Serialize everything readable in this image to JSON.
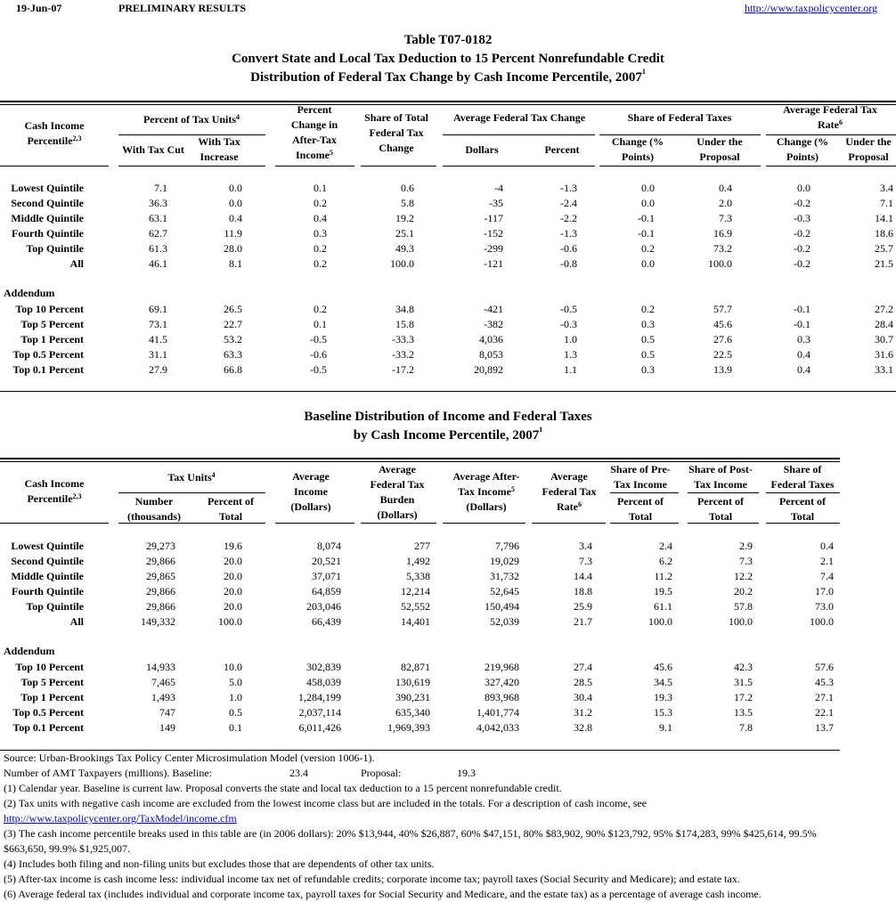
{
  "top": {
    "date": "19-Jun-07",
    "status": "PRELIMINARY RESULTS",
    "url": "http://www.taxpolicycenter.org"
  },
  "titles": {
    "table_id": "Table T07-0182",
    "line2": "Convert State and Local Tax Deduction to 15 Percent Nonrefundable Credit",
    "line3": "Distribution of Federal Tax Change by Cash Income Percentile, 2007",
    "line3_sup": "1"
  },
  "table1": {
    "headers": [
      {
        "lines": [
          "Cash Income",
          "Percentile"
        ],
        "sup": "2,3"
      },
      {
        "lines": [
          "Percent of Tax Units"
        ],
        "sup": "4"
      },
      {
        "lines": [
          "With Tax Cut"
        ]
      },
      {
        "lines": [
          "With Tax",
          "Increase"
        ]
      },
      {
        "lines": [
          "Percent",
          "Change in",
          "After-Tax",
          "Income"
        ],
        "sup": "5"
      },
      {
        "lines": [
          "Share of Total",
          "Federal Tax",
          "Change"
        ]
      },
      {
        "lines": [
          "Average Federal Tax Change"
        ]
      },
      {
        "lines": [
          "Dollars"
        ]
      },
      {
        "lines": [
          "Percent"
        ]
      },
      {
        "lines": [
          "Share of Federal Taxes"
        ]
      },
      {
        "lines": [
          "Change (%",
          "Points)"
        ]
      },
      {
        "lines": [
          "Under the",
          "Proposal"
        ]
      },
      {
        "lines": [
          "Average Federal Tax",
          "Rate"
        ],
        "sup": "6"
      },
      {
        "lines": [
          "Change (%",
          "Points)"
        ]
      },
      {
        "lines": [
          "Under the",
          "Proposal"
        ]
      }
    ],
    "addendum_label": "Addendum",
    "rows": [
      [
        "Lowest Quintile",
        "7.1",
        "0.0",
        "0.1",
        "0.6",
        "-4",
        "-1.3",
        "0.0",
        "0.4",
        "0.0",
        "3.4"
      ],
      [
        "Second Quintile",
        "36.3",
        "0.0",
        "0.2",
        "5.8",
        "-35",
        "-2.4",
        "0.0",
        "2.0",
        "-0.2",
        "7.1"
      ],
      [
        "Middle Quintile",
        "63.1",
        "0.4",
        "0.4",
        "19.2",
        "-117",
        "-2.2",
        "-0.1",
        "7.3",
        "-0.3",
        "14.1"
      ],
      [
        "Fourth Quintile",
        "62.7",
        "11.9",
        "0.3",
        "25.1",
        "-152",
        "-1.3",
        "-0.1",
        "16.9",
        "-0.2",
        "18.6"
      ],
      [
        "Top Quintile",
        "61.3",
        "28.0",
        "0.2",
        "49.3",
        "-299",
        "-0.6",
        "0.2",
        "73.2",
        "-0.2",
        "25.7"
      ],
      [
        "All",
        "46.1",
        "8.1",
        "0.2",
        "100.0",
        "-121",
        "-0.8",
        "0.0",
        "100.0",
        "-0.2",
        "21.5"
      ]
    ],
    "addendum_rows": [
      [
        "Top 10 Percent",
        "69.1",
        "26.5",
        "0.2",
        "34.8",
        "-421",
        "-0.5",
        "0.2",
        "57.7",
        "-0.1",
        "27.2"
      ],
      [
        "Top 5 Percent",
        "73.1",
        "22.7",
        "0.1",
        "15.8",
        "-382",
        "-0.3",
        "0.3",
        "45.6",
        "-0.1",
        "28.4"
      ],
      [
        "Top 1 Percent",
        "41.5",
        "53.2",
        "-0.5",
        "-33.3",
        "4,036",
        "1.0",
        "0.5",
        "27.6",
        "0.3",
        "30.7"
      ],
      [
        "Top 0.5 Percent",
        "31.1",
        "63.3",
        "-0.6",
        "-33.2",
        "8,053",
        "1.3",
        "0.5",
        "22.5",
        "0.4",
        "31.6"
      ],
      [
        "Top 0.1 Percent",
        "27.9",
        "66.8",
        "-0.5",
        "-17.2",
        "20,892",
        "1.1",
        "0.3",
        "13.9",
        "0.4",
        "33.1"
      ]
    ]
  },
  "table2": {
    "title_line1": "Baseline Distribution of Income and Federal Taxes",
    "title_line2": "by Cash Income Percentile, 2007",
    "title_sup": "1",
    "headers": [
      {
        "lines": [
          "Cash Income",
          "Percentile"
        ],
        "sup": "2,3"
      },
      {
        "lines": [
          "Tax Units"
        ],
        "sup": "4"
      },
      {
        "lines": [
          "Number",
          "(thousands)"
        ]
      },
      {
        "lines": [
          "Percent of",
          "Total"
        ]
      },
      {
        "lines": [
          "Average",
          "Income",
          "(Dollars)"
        ]
      },
      {
        "lines": [
          "Average",
          "Federal Tax",
          "Burden",
          "(Dollars)"
        ]
      },
      {
        "lines": [
          "Average After-",
          "Tax Income",
          "(Dollars)"
        ],
        "sup": "5",
        "sup_line": 1
      },
      {
        "lines": [
          "Average",
          "Federal Tax",
          "Rate"
        ],
        "sup": "6"
      },
      {
        "lines": [
          "Share of Pre-",
          "Tax Income"
        ]
      },
      {
        "lines": [
          "Percent of",
          "Total"
        ]
      },
      {
        "lines": [
          "Share of Post-",
          "Tax Income"
        ]
      },
      {
        "lines": [
          "Percent of",
          "Total"
        ]
      },
      {
        "lines": [
          "Share of",
          "Federal Taxes"
        ]
      },
      {
        "lines": [
          "Percent of",
          "Total"
        ]
      }
    ],
    "addendum_label": "Addendum",
    "rows": [
      [
        "Lowest Quintile",
        "29,273",
        "19.6",
        "8,074",
        "277",
        "7,796",
        "3.4",
        "2.4",
        "2.9",
        "0.4"
      ],
      [
        "Second Quintile",
        "29,866",
        "20.0",
        "20,521",
        "1,492",
        "19,029",
        "7.3",
        "6.2",
        "7.3",
        "2.1"
      ],
      [
        "Middle Quintile",
        "29,865",
        "20.0",
        "37,071",
        "5,338",
        "31,732",
        "14.4",
        "11.2",
        "12.2",
        "7.4"
      ],
      [
        "Fourth Quintile",
        "29,866",
        "20.0",
        "64,859",
        "12,214",
        "52,645",
        "18.8",
        "19.5",
        "20.2",
        "17.0"
      ],
      [
        "Top Quintile",
        "29,866",
        "20.0",
        "203,046",
        "52,552",
        "150,494",
        "25.9",
        "61.1",
        "57.8",
        "73.0"
      ],
      [
        "All",
        "149,332",
        "100.0",
        "66,439",
        "14,401",
        "52,039",
        "21.7",
        "100.0",
        "100.0",
        "100.0"
      ]
    ],
    "addendum_rows": [
      [
        "Top 10 Percent",
        "14,933",
        "10.0",
        "302,839",
        "82,871",
        "219,968",
        "27.4",
        "45.6",
        "42.3",
        "57.6"
      ],
      [
        "Top 5 Percent",
        "7,465",
        "5.0",
        "458,039",
        "130,619",
        "327,420",
        "28.5",
        "34.5",
        "31.5",
        "45.3"
      ],
      [
        "Top 1 Percent",
        "1,493",
        "1.0",
        "1,284,199",
        "390,231",
        "893,968",
        "30.4",
        "19.3",
        "17.2",
        "27.1"
      ],
      [
        "Top 0.5 Percent",
        "747",
        "0.5",
        "2,037,114",
        "635,340",
        "1,401,774",
        "31.2",
        "15.3",
        "13.5",
        "22.1"
      ],
      [
        "Top 0.1 Percent",
        "149",
        "0.1",
        "6,011,426",
        "1,969,393",
        "4,042,033",
        "32.8",
        "9.1",
        "7.8",
        "13.7"
      ]
    ]
  },
  "footnotes": {
    "source": "Source: Urban-Brookings Tax Policy Center Microsimulation Model (version 1006-1).",
    "amt_label": "Number of AMT Taxpayers (millions).  Baseline:",
    "amt_baseline": "23.4",
    "amt_proposal_label": "Proposal:",
    "amt_proposal": "19.3",
    "note1": "(1) Calendar year. Baseline is current law. Proposal converts the state and local tax deduction to a 15 percent nonrefundable credit.",
    "note2": "(2) Tax units with negative cash income are excluded from the lowest income class but are included in the totals. For a description of cash income, see",
    "note2_link": "http://www.taxpolicycenter.org/TaxModel/income.cfm",
    "note3a": "(3) The cash income percentile breaks used in this table are (in 2006 dollars): 20% $13,944, 40% $26,887, 60% $47,151, 80% $83,902, 90% $123,792, 95% $174,283, 99% $425,614, 99.5%",
    "note3b": "$663,650, 99.9% $1,925,007.",
    "note4": "(4) Includes both filing and non-filing units but excludes those that are dependents of other tax units.",
    "note5": "(5) After-tax income is cash income less: individual income tax net of refundable credits; corporate income tax; payroll taxes (Social Security and Medicare); and estate tax.",
    "note6": "(6) Average federal tax (includes individual and corporate income tax, payroll taxes for Social Security and Medicare, and the estate tax) as a percentage of average cash income."
  }
}
